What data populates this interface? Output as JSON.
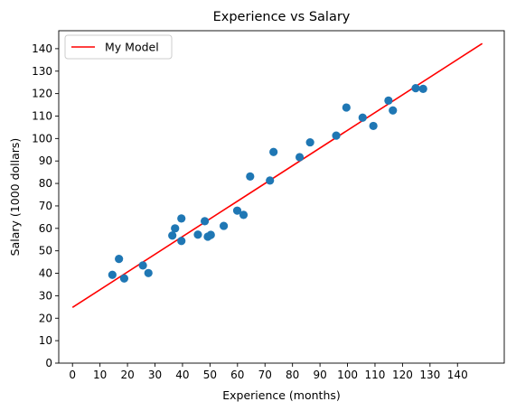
{
  "chart_data": {
    "type": "scatter",
    "title": "Experience vs Salary",
    "xlabel": "Experience (months)",
    "ylabel": "Salary (1000 dollars)",
    "xlim": [
      -5,
      157
    ],
    "ylim": [
      0,
      148
    ],
    "xticks": [
      0,
      10,
      20,
      30,
      40,
      50,
      60,
      70,
      80,
      90,
      100,
      110,
      120,
      130,
      140
    ],
    "yticks": [
      0,
      10,
      20,
      30,
      40,
      50,
      60,
      70,
      80,
      90,
      100,
      110,
      120,
      130,
      140
    ],
    "grid": false,
    "legend": {
      "position": "top-left",
      "entries": [
        "My Model"
      ]
    },
    "colors": {
      "points": "#1f77b4",
      "line": "#ff0000"
    },
    "points": [
      {
        "x": 14.5,
        "y": 39.3
      },
      {
        "x": 16.9,
        "y": 46.4
      },
      {
        "x": 18.8,
        "y": 37.7
      },
      {
        "x": 25.6,
        "y": 43.5
      },
      {
        "x": 27.6,
        "y": 40.1
      },
      {
        "x": 36.3,
        "y": 56.8
      },
      {
        "x": 37.3,
        "y": 60.0
      },
      {
        "x": 39.6,
        "y": 64.4
      },
      {
        "x": 39.6,
        "y": 54.4
      },
      {
        "x": 45.6,
        "y": 57.2
      },
      {
        "x": 48.1,
        "y": 63.2
      },
      {
        "x": 49.2,
        "y": 56.3
      },
      {
        "x": 50.3,
        "y": 57.1
      },
      {
        "x": 55.0,
        "y": 61.1
      },
      {
        "x": 59.9,
        "y": 67.9
      },
      {
        "x": 62.2,
        "y": 66.0
      },
      {
        "x": 64.6,
        "y": 83.1
      },
      {
        "x": 71.8,
        "y": 81.3
      },
      {
        "x": 73.1,
        "y": 94.0
      },
      {
        "x": 82.6,
        "y": 91.7
      },
      {
        "x": 86.4,
        "y": 98.3
      },
      {
        "x": 95.9,
        "y": 101.3
      },
      {
        "x": 99.6,
        "y": 113.8
      },
      {
        "x": 105.5,
        "y": 109.3
      },
      {
        "x": 109.4,
        "y": 105.6
      },
      {
        "x": 114.9,
        "y": 116.9
      },
      {
        "x": 116.5,
        "y": 112.5
      },
      {
        "x": 124.8,
        "y": 122.4
      },
      {
        "x": 127.5,
        "y": 122.1
      }
    ],
    "series": [
      {
        "name": "My Model",
        "type": "line",
        "x": [
          0,
          149
        ],
        "y": [
          24.8,
          142.3
        ]
      }
    ]
  }
}
